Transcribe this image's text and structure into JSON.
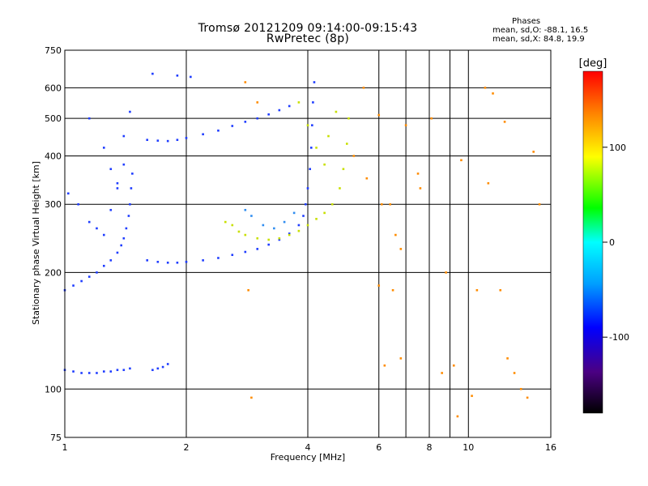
{
  "header": {
    "title_line1": "Tromsø 20121209 09:14:00-09:15:43",
    "title_line2": "RwPretec (8p)",
    "stats_heading": "Phases",
    "stats_o": "mean, sd,O:  -88.1, 16.5",
    "stats_x": "mean, sd,X:  84.8, 19.9"
  },
  "colorbar": {
    "label": "[deg]",
    "ticks": [
      {
        "value": 100,
        "label": "100"
      },
      {
        "value": 0,
        "label": "0"
      },
      {
        "value": -100,
        "label": "-100"
      }
    ],
    "range": [
      -180,
      180
    ]
  },
  "chart_data": {
    "type": "scatter",
    "xlabel": "Frequency [MHz]",
    "ylabel": "Stationary phase Virtual Height [km]",
    "xscale": "log",
    "yscale": "log",
    "xlim": [
      1,
      16
    ],
    "ylim": [
      75,
      750
    ],
    "xticks": [
      {
        "value": 1,
        "label": "1"
      },
      {
        "value": 2,
        "label": "2"
      },
      {
        "value": 4,
        "label": "4"
      },
      {
        "value": 6,
        "label": "6"
      },
      {
        "value": 8,
        "label": "8"
      },
      {
        "value": 10,
        "label": "10"
      },
      {
        "value": 16,
        "label": "16"
      }
    ],
    "xgrid": [
      1,
      2,
      4,
      6,
      7,
      8,
      9,
      10,
      16
    ],
    "yticks": [
      {
        "value": 75,
        "label": "75"
      },
      {
        "value": 100,
        "label": "100"
      },
      {
        "value": 200,
        "label": "200"
      },
      {
        "value": 300,
        "label": "300"
      },
      {
        "value": 400,
        "label": "400"
      },
      {
        "value": 500,
        "label": "500"
      },
      {
        "value": 600,
        "label": "600"
      },
      {
        "value": 750,
        "label": "750"
      }
    ],
    "grid": true,
    "series": [
      {
        "points": [
          [
            1.0,
            180
          ],
          [
            1.05,
            185
          ],
          [
            1.1,
            190
          ],
          [
            1.15,
            195
          ],
          [
            1.2,
            200
          ],
          [
            1.25,
            208
          ],
          [
            1.3,
            215
          ],
          [
            1.35,
            225
          ],
          [
            1.38,
            235
          ],
          [
            1.4,
            245
          ],
          [
            1.42,
            260
          ],
          [
            1.44,
            280
          ],
          [
            1.45,
            300
          ],
          [
            1.46,
            330
          ],
          [
            1.47,
            360
          ],
          [
            1.0,
            112
          ],
          [
            1.05,
            111
          ],
          [
            1.1,
            110
          ],
          [
            1.15,
            110
          ],
          [
            1.2,
            110
          ],
          [
            1.25,
            111
          ],
          [
            1.3,
            111
          ],
          [
            1.35,
            112
          ],
          [
            1.4,
            112
          ],
          [
            1.45,
            113
          ],
          [
            1.65,
            112
          ],
          [
            1.7,
            113
          ],
          [
            1.75,
            114
          ],
          [
            1.8,
            116
          ],
          [
            1.6,
            215
          ],
          [
            1.7,
            213
          ],
          [
            1.8,
            212
          ],
          [
            1.9,
            212
          ],
          [
            2.0,
            213
          ],
          [
            2.2,
            215
          ],
          [
            2.4,
            218
          ],
          [
            2.6,
            222
          ],
          [
            2.8,
            226
          ],
          [
            3.0,
            230
          ],
          [
            3.2,
            236
          ],
          [
            3.4,
            243
          ],
          [
            3.6,
            252
          ],
          [
            3.8,
            265
          ],
          [
            3.9,
            280
          ],
          [
            3.95,
            300
          ],
          [
            4.0,
            330
          ],
          [
            4.05,
            370
          ],
          [
            4.08,
            420
          ],
          [
            4.1,
            480
          ],
          [
            4.12,
            550
          ],
          [
            4.15,
            620
          ],
          [
            1.6,
            440
          ],
          [
            1.7,
            438
          ],
          [
            1.8,
            437
          ],
          [
            1.9,
            440
          ],
          [
            2.0,
            445
          ],
          [
            2.2,
            455
          ],
          [
            2.4,
            465
          ],
          [
            2.6,
            478
          ],
          [
            2.8,
            490
          ],
          [
            3.0,
            500
          ],
          [
            3.2,
            512
          ],
          [
            3.4,
            525
          ],
          [
            3.6,
            538
          ],
          [
            1.02,
            320
          ],
          [
            1.08,
            300
          ],
          [
            1.15,
            270
          ],
          [
            1.25,
            250
          ],
          [
            1.35,
            330
          ],
          [
            1.4,
            380
          ],
          [
            1.3,
            290
          ],
          [
            1.2,
            260
          ],
          [
            1.15,
            500
          ],
          [
            1.25,
            420
          ],
          [
            1.3,
            370
          ],
          [
            1.35,
            340
          ],
          [
            1.4,
            450
          ],
          [
            1.45,
            520
          ],
          [
            1.65,
            652
          ],
          [
            1.9,
            645
          ],
          [
            2.05,
            640
          ]
        ]
      },
      {
        "points": [
          [
            2.5,
            270
          ],
          [
            2.6,
            265
          ],
          [
            2.7,
            255
          ],
          [
            2.8,
            250
          ],
          [
            3.0,
            245
          ],
          [
            3.2,
            243
          ],
          [
            3.4,
            245
          ],
          [
            3.6,
            250
          ],
          [
            3.8,
            256
          ],
          [
            4.0,
            265
          ],
          [
            4.2,
            275
          ],
          [
            4.4,
            285
          ],
          [
            4.6,
            300
          ],
          [
            4.8,
            330
          ],
          [
            4.9,
            370
          ],
          [
            5.0,
            430
          ],
          [
            5.05,
            500
          ],
          [
            3.8,
            550
          ],
          [
            4.0,
            480
          ],
          [
            4.2,
            420
          ],
          [
            4.4,
            380
          ],
          [
            4.5,
            450
          ],
          [
            4.7,
            520
          ]
        ]
      },
      {
        "points": [
          [
            2.8,
            290
          ],
          [
            2.9,
            280
          ],
          [
            3.1,
            265
          ],
          [
            3.3,
            260
          ],
          [
            3.5,
            270
          ],
          [
            3.7,
            285
          ]
        ]
      },
      {
        "points": [
          [
            5.5,
            600
          ],
          [
            6.0,
            510
          ],
          [
            6.1,
            300
          ],
          [
            6.4,
            300
          ],
          [
            6.6,
            250
          ],
          [
            6.8,
            230
          ],
          [
            6.0,
            185
          ],
          [
            6.5,
            180
          ],
          [
            7.0,
            480
          ],
          [
            7.5,
            360
          ],
          [
            8.1,
            500
          ],
          [
            8.8,
            200
          ],
          [
            9.2,
            115
          ],
          [
            9.6,
            390
          ],
          [
            10.5,
            180
          ],
          [
            11.0,
            600
          ],
          [
            11.5,
            580
          ],
          [
            12.0,
            180
          ],
          [
            12.5,
            120
          ],
          [
            13.0,
            110
          ],
          [
            13.5,
            100
          ],
          [
            14.0,
            95
          ],
          [
            15.0,
            300
          ],
          [
            2.8,
            620
          ],
          [
            2.85,
            180
          ],
          [
            2.9,
            95
          ],
          [
            3.0,
            550
          ],
          [
            5.2,
            400
          ],
          [
            5.6,
            350
          ],
          [
            6.2,
            115
          ],
          [
            6.8,
            120
          ],
          [
            7.6,
            330
          ],
          [
            8.6,
            110
          ],
          [
            9.4,
            85
          ],
          [
            10.2,
            96
          ],
          [
            11.2,
            340
          ],
          [
            12.3,
            490
          ],
          [
            14.5,
            410
          ]
        ]
      }
    ]
  },
  "colors": {
    "blue": "#1f3dff",
    "navy": "#0a16c8",
    "light_blue": "#2f8df0",
    "yellow_green": "#c8e000",
    "orange": "#ff8c00",
    "red": "#ff0000",
    "cyan": "#00d0d0",
    "green": "#00c000"
  }
}
